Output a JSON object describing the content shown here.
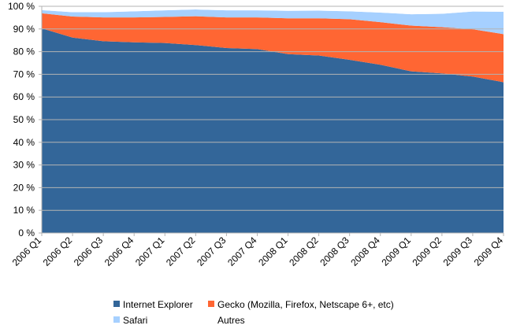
{
  "chart_data": {
    "type": "area",
    "stacked": true,
    "categories": [
      "2006 Q1",
      "2006 Q2",
      "2006 Q3",
      "2006 Q4",
      "2007 Q1",
      "2007 Q2",
      "2007 Q3",
      "2007 Q4",
      "2008 Q1",
      "2008 Q2",
      "2008 Q3",
      "2008 Q4",
      "2009 Q1",
      "2009 Q2",
      "2009 Q3",
      "2009 Q4"
    ],
    "ylim": [
      0,
      100
    ],
    "yticks": [
      0,
      10,
      20,
      30,
      40,
      50,
      60,
      70,
      80,
      90,
      100
    ],
    "ytick_labels": [
      "0 %",
      "10 %",
      "20 %",
      "30 %",
      "40 %",
      "50 %",
      "60 %",
      "70 %",
      "80 %",
      "90 %",
      "100 %"
    ],
    "grid": true,
    "legend_position": "bottom",
    "series": [
      {
        "name": "Internet Explorer",
        "color": "#336699",
        "values": [
          90.3,
          86.2,
          84.6,
          84.1,
          83.8,
          82.9,
          81.6,
          81.1,
          78.9,
          78.3,
          76.4,
          74.2,
          71.3,
          70.4,
          69.0,
          66.5
        ]
      },
      {
        "name": "Gecko (Mozilla, Firefox, Netscape 6+, etc)",
        "color": "#ff6633",
        "values": [
          6.6,
          9.3,
          10.5,
          11.0,
          11.5,
          12.7,
          13.5,
          14.0,
          15.8,
          16.4,
          17.9,
          18.8,
          20.2,
          20.4,
          20.9,
          21.2
        ]
      },
      {
        "name": "Safari",
        "color": "#a6d0ff",
        "values": [
          1.4,
          1.9,
          2.3,
          2.7,
          2.9,
          3.0,
          3.1,
          3.1,
          3.3,
          3.4,
          3.5,
          4.2,
          5.0,
          5.9,
          7.8,
          9.9
        ]
      },
      {
        "name": "Autres",
        "color": "#ffffff",
        "values": [
          1.7,
          2.6,
          2.6,
          2.2,
          1.8,
          1.4,
          1.8,
          1.8,
          2.0,
          1.9,
          2.2,
          2.8,
          3.5,
          3.3,
          2.3,
          2.4
        ]
      }
    ]
  }
}
